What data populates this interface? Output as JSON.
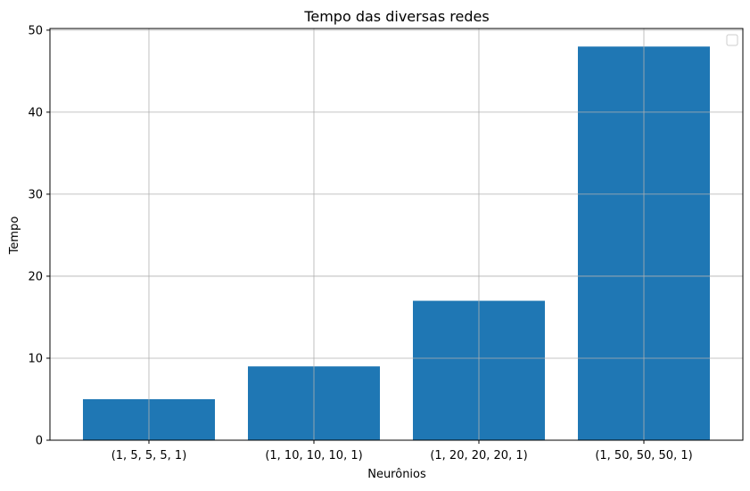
{
  "chart_data": {
    "type": "bar",
    "title": "Tempo das diversas redes",
    "xlabel": "Neurônios",
    "ylabel": "Tempo",
    "categories": [
      "(1, 5, 5, 5, 1)",
      "(1, 10, 10, 10, 1)",
      "(1, 20, 20, 20, 1)",
      "(1, 50, 50, 50, 1)"
    ],
    "values": [
      5,
      9,
      17,
      48
    ],
    "ylim": [
      0,
      50.2
    ],
    "yticks": [
      0,
      10,
      20,
      30,
      40,
      50
    ],
    "grid": true,
    "legend": {
      "position": "top-right",
      "entries": []
    },
    "colors": {
      "bar": "#1f77b4",
      "grid": "#b0b0b0",
      "axis": "#000000"
    }
  }
}
